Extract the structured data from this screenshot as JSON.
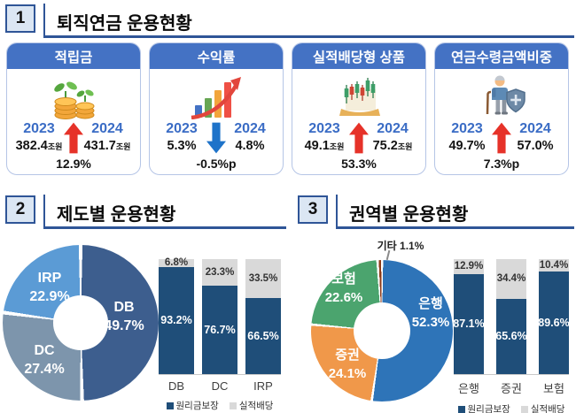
{
  "sections": {
    "s1": {
      "number": "1",
      "title": "퇴직연금 운용현황",
      "cards": [
        {
          "title": "적립금",
          "icon": "coins-sprout-icon",
          "year_left": "2023",
          "value_left": "382.4",
          "unit_left": "조원",
          "year_right": "2024",
          "value_right": "431.7",
          "unit_right": "조원",
          "arrow": "up",
          "change": "12.9%"
        },
        {
          "title": "수익률",
          "icon": "growth-chart-icon",
          "year_left": "2023",
          "value_left": "5.3%",
          "unit_left": "",
          "year_right": "2024",
          "value_right": "4.8%",
          "unit_right": "",
          "arrow": "down",
          "change": "-0.5%p"
        },
        {
          "title": "실적배당형 상품",
          "icon": "candlestick-chart-icon",
          "year_left": "2023",
          "value_left": "49.1",
          "unit_left": "조원",
          "year_right": "2024",
          "value_right": "75.2",
          "unit_right": "조원",
          "arrow": "up",
          "change": "53.3%"
        },
        {
          "title": "연금수령금액비중",
          "icon": "senior-shield-icon",
          "year_left": "2023",
          "value_left": "49.7%",
          "unit_left": "",
          "year_right": "2024",
          "value_right": "57.0%",
          "unit_right": "",
          "arrow": "up",
          "change": "7.3%p"
        }
      ]
    },
    "s2": {
      "number": "2",
      "title": "제도별 운용현황"
    },
    "s3": {
      "number": "3",
      "title": "권역별 운용현황"
    }
  },
  "chart_data": [
    {
      "id": "donut-by-plan",
      "type": "pie",
      "donut": true,
      "title": "제도별 운용현황",
      "labels": [
        "DB",
        "DC",
        "IRP"
      ],
      "values": [
        49.7,
        27.4,
        22.9
      ],
      "value_labels": [
        "49.7%",
        "27.4%",
        "22.9%"
      ],
      "colors": [
        "#3d5e8e",
        "#7d95ac",
        "#5b9bd5"
      ],
      "start_angle": "top",
      "direction": "clockwise",
      "label_position": "inside"
    },
    {
      "id": "stacked-bar-by-plan",
      "type": "bar",
      "stacked": true,
      "percent": true,
      "title": "제도별 운용현황",
      "categories": [
        "DB",
        "DC",
        "IRP"
      ],
      "series": [
        {
          "name": "원리금보장",
          "values": [
            93.2,
            76.7,
            66.5
          ],
          "color": "#1f4e79"
        },
        {
          "name": "실적배당",
          "values": [
            6.8,
            23.3,
            33.5
          ],
          "color": "#d9d9d9"
        }
      ],
      "ylim": [
        0,
        100
      ],
      "grid": false,
      "legend_position": "bottom"
    },
    {
      "id": "donut-by-sector",
      "type": "pie",
      "donut": true,
      "title": "권역별 운용현황",
      "labels": [
        "은행",
        "증권",
        "보험",
        "기타"
      ],
      "values": [
        52.3,
        24.1,
        22.6,
        1.1
      ],
      "value_labels": [
        "52.3%",
        "24.1%",
        "22.6%",
        "1.1%"
      ],
      "colors": [
        "#2e74b8",
        "#f0984a",
        "#4ba46e",
        "#8c3a17"
      ],
      "start_angle": "top",
      "direction": "clockwise",
      "label_position": "inside"
    },
    {
      "id": "stacked-bar-by-sector",
      "type": "bar",
      "stacked": true,
      "percent": true,
      "title": "권역별 운용현황",
      "categories": [
        "은행",
        "증권",
        "보험"
      ],
      "series": [
        {
          "name": "원리금보장",
          "values": [
            87.1,
            65.6,
            89.6
          ],
          "color": "#1f4e79"
        },
        {
          "name": "실적배당",
          "values": [
            12.9,
            34.4,
            10.4
          ],
          "color": "#d9d9d9"
        }
      ],
      "ylim": [
        0,
        100
      ],
      "grid": false,
      "legend_position": "bottom"
    }
  ],
  "colors": {
    "card_header_blue": "#4472c4",
    "section_line_navy": "#2f5597",
    "number_box_bg": "#dbe6f3",
    "year_blue": "#3a6cc5",
    "up_arrow_red": "#e63229",
    "down_arrow_blue": "#1e73c9",
    "bar_navy": "#1f4e79",
    "bar_gray": "#d9d9d9"
  }
}
